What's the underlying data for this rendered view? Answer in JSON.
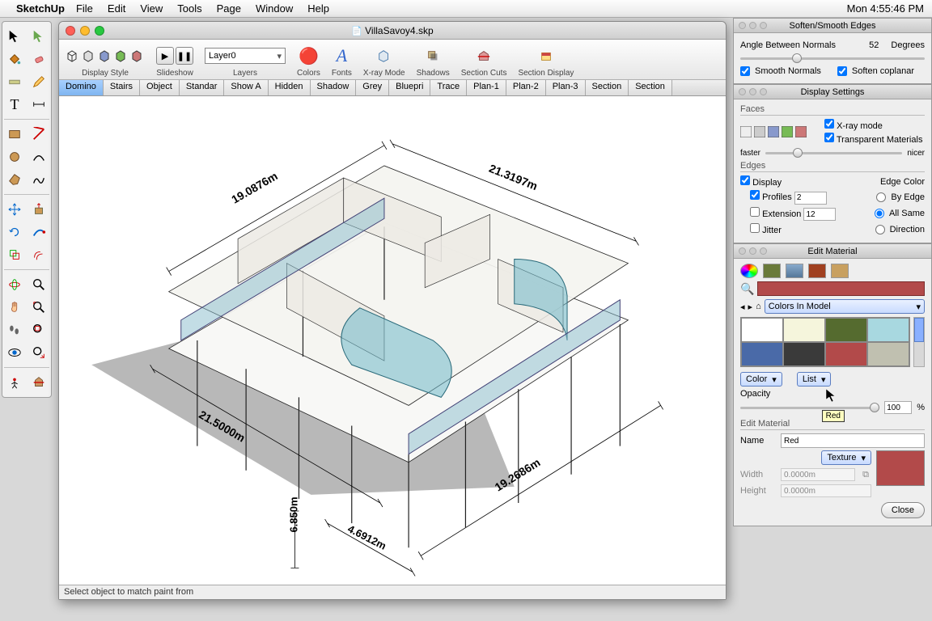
{
  "menubar": {
    "apple": "",
    "app": "SketchUp",
    "items": [
      "File",
      "Edit",
      "View",
      "Tools",
      "Page",
      "Window",
      "Help"
    ],
    "clock": "Mon 4:55:46 PM"
  },
  "window": {
    "title": "VillaSavoy4.skp",
    "status": "Select object to match paint from"
  },
  "toolbar": {
    "groups": {
      "display_style": "Display Style",
      "slideshow": "Slideshow",
      "layers": "Layers",
      "colors": "Colors",
      "fonts": "Fonts",
      "xray": "X-ray Mode",
      "shadows": "Shadows",
      "section_cuts": "Section Cuts",
      "section_display": "Section Display"
    },
    "layer_value": "Layer0"
  },
  "tabs": [
    "Domino",
    "Stairs",
    "Object",
    "Standar",
    "Show A",
    "Hidden",
    "Shadow",
    "Grey",
    "Bluepri",
    "Trace",
    "Plan-1",
    "Plan-2",
    "Plan-3",
    "Section",
    "Section"
  ],
  "active_tab": 0,
  "dims": {
    "d1": "19.0876m",
    "d2": "21.3197m",
    "d3": "21.5000m",
    "d4": "19.2686m",
    "d5": "6.850m",
    "d6": "4.6912m"
  },
  "panels": {
    "smooth": {
      "title": "Soften/Smooth Edges",
      "angle_label": "Angle Between Normals",
      "angle_value": "52",
      "angle_unit": "Degrees",
      "smooth_normals": "Smooth Normals",
      "soften_coplanar": "Soften coplanar"
    },
    "display": {
      "title": "Display Settings",
      "faces": "Faces",
      "xray": "X-ray mode",
      "transparent": "Transparent Materials",
      "faster": "faster",
      "nicer": "nicer",
      "edges": "Edges",
      "display_cb": "Display",
      "edge_color": "Edge Color",
      "profiles": "Profiles",
      "profiles_val": "2",
      "by_edge": "By Edge",
      "extension": "Extension",
      "extension_val": "12",
      "all_same": "All Same",
      "jitter": "Jitter",
      "direction": "Direction"
    },
    "editmat": {
      "title": "Edit Material",
      "colors_in_model": "Colors In Model",
      "color_btn": "Color",
      "list_btn": "List",
      "opacity": "Opacity",
      "opacity_val": "100",
      "opacity_pct": "%",
      "section": "Edit Material",
      "name_label": "Name",
      "name_value": "Red",
      "texture_btn": "Texture",
      "width_label": "Width",
      "width_val": "0.0000m",
      "height_label": "Height",
      "height_val": "0.0000m",
      "close": "Close",
      "tooltip": "Red"
    }
  },
  "swatches": [
    "#ffffff",
    "#f5f5dc",
    "#556b2f",
    "#a8d8e0",
    "#4a6aa8",
    "#3a3a3a",
    "#b24a4a",
    "#c0c0b0"
  ],
  "selected_swatch_color": "#b24a4a",
  "tool_icons": [
    "select",
    "bucket",
    "eraser",
    "rect",
    "line",
    "circle",
    "arc",
    "polygon",
    "freehand",
    "move",
    "rotate",
    "scale",
    "offset",
    "tape",
    "protractor",
    "dim",
    "text",
    "axes",
    "orbit",
    "pan",
    "zoom",
    "zoomext",
    "walk",
    "look",
    "section",
    "eye",
    "person"
  ]
}
